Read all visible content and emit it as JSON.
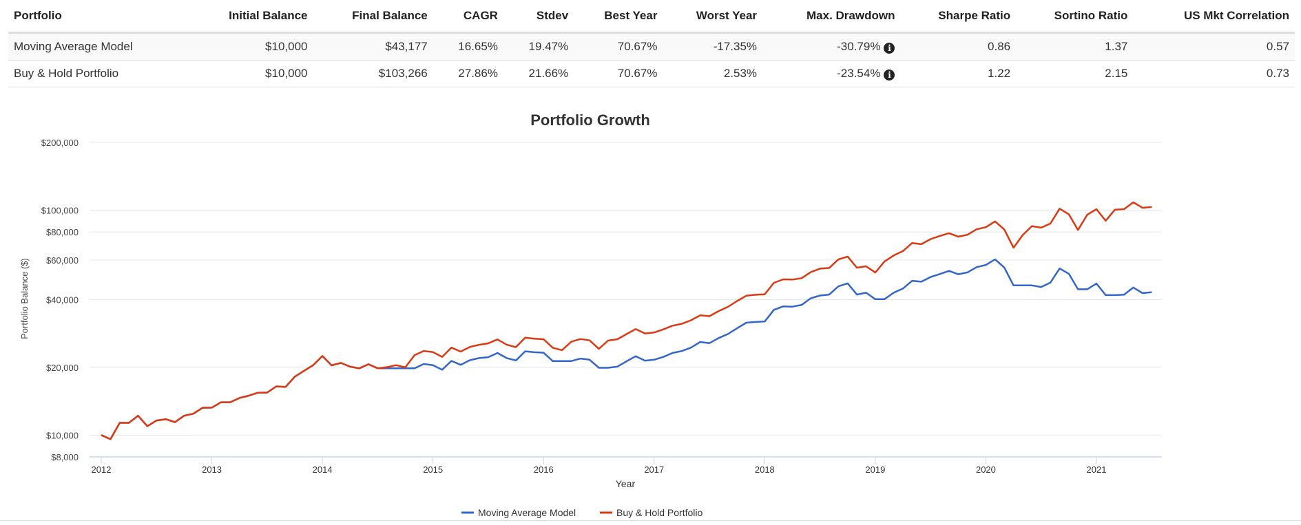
{
  "table": {
    "headers": [
      "Portfolio",
      "Initial Balance",
      "Final Balance",
      "CAGR",
      "Stdev",
      "Best Year",
      "Worst Year",
      "Max. Drawdown",
      "Sharpe Ratio",
      "Sortino Ratio",
      "US Mkt Correlation"
    ],
    "rows": [
      {
        "portfolio": "Moving Average Model",
        "initial": "$10,000",
        "final": "$43,177",
        "cagr": "16.65%",
        "stdev": "19.47%",
        "best": "70.67%",
        "worst": "-17.35%",
        "drawdown": "-30.79%",
        "sharpe": "0.86",
        "sortino": "1.37",
        "corr": "0.57"
      },
      {
        "portfolio": "Buy & Hold Portfolio",
        "initial": "$10,000",
        "final": "$103,266",
        "cagr": "27.86%",
        "stdev": "21.66%",
        "best": "70.67%",
        "worst": "2.53%",
        "drawdown": "-23.54%",
        "sharpe": "1.22",
        "sortino": "2.15",
        "corr": "0.73"
      }
    ],
    "info_icon": "info-circle-icon",
    "info_glyph": "i"
  },
  "chart_data": {
    "type": "line",
    "title": "Portfolio Growth",
    "xlabel": "Year",
    "ylabel": "Portfolio Balance ($)",
    "yscale": "log",
    "ylim": [
      8000,
      200000
    ],
    "yticks": [
      8000,
      10000,
      20000,
      40000,
      60000,
      80000,
      100000,
      200000
    ],
    "ytick_labels": [
      "$8,000",
      "$10,000",
      "$20,000",
      "$40,000",
      "$60,000",
      "$80,000",
      "$100,000",
      "$200,000"
    ],
    "xticks": [
      "2012",
      "2013",
      "2014",
      "2015",
      "2016",
      "2017",
      "2018",
      "2019",
      "2020",
      "2021"
    ],
    "grid": true,
    "legend": "bottom",
    "x": [
      "2012-01",
      "2012-02",
      "2012-03",
      "2012-04",
      "2012-05",
      "2012-06",
      "2012-07",
      "2012-08",
      "2012-09",
      "2012-10",
      "2012-11",
      "2012-12",
      "2013-01",
      "2013-02",
      "2013-03",
      "2013-04",
      "2013-05",
      "2013-06",
      "2013-07",
      "2013-08",
      "2013-09",
      "2013-10",
      "2013-11",
      "2013-12",
      "2014-01",
      "2014-02",
      "2014-03",
      "2014-04",
      "2014-05",
      "2014-06",
      "2014-07",
      "2014-08",
      "2014-09",
      "2014-10",
      "2014-11",
      "2014-12",
      "2015-01",
      "2015-02",
      "2015-03",
      "2015-04",
      "2015-05",
      "2015-06",
      "2015-07",
      "2015-08",
      "2015-09",
      "2015-10",
      "2015-11",
      "2015-12",
      "2016-01",
      "2016-02",
      "2016-03",
      "2016-04",
      "2016-05",
      "2016-06",
      "2016-07",
      "2016-08",
      "2016-09",
      "2016-10",
      "2016-11",
      "2016-12",
      "2017-01",
      "2017-02",
      "2017-03",
      "2017-04",
      "2017-05",
      "2017-06",
      "2017-07",
      "2017-08",
      "2017-09",
      "2017-10",
      "2017-11",
      "2017-12",
      "2018-01",
      "2018-02",
      "2018-03",
      "2018-04",
      "2018-05",
      "2018-06",
      "2018-07",
      "2018-08",
      "2018-09",
      "2018-10",
      "2018-11",
      "2018-12",
      "2019-01",
      "2019-02",
      "2019-03",
      "2019-04",
      "2019-05",
      "2019-06",
      "2019-07",
      "2019-08",
      "2019-09",
      "2019-10",
      "2019-11",
      "2019-12",
      "2020-01",
      "2020-02",
      "2020-03",
      "2020-04",
      "2020-05",
      "2020-06",
      "2020-07",
      "2020-08",
      "2020-09",
      "2020-10",
      "2020-11",
      "2020-12",
      "2021-01",
      "2021-02",
      "2021-03",
      "2021-04",
      "2021-05",
      "2021-06",
      "2021-07"
    ],
    "series": [
      {
        "name": "Moving Average Model",
        "color": "#3366cc",
        "values": [
          10000,
          9590,
          11340,
          11340,
          12190,
          10950,
          11610,
          11770,
          11420,
          12190,
          12450,
          13230,
          13250,
          13990,
          13990,
          14620,
          14960,
          15430,
          15450,
          16470,
          16360,
          18170,
          19310,
          20460,
          22460,
          20420,
          20940,
          20140,
          19800,
          20650,
          19800,
          19800,
          19800,
          19800,
          19800,
          20710,
          20460,
          19520,
          21370,
          20530,
          21520,
          21990,
          22200,
          23180,
          21990,
          21470,
          23570,
          23350,
          23240,
          21320,
          21320,
          21320,
          21890,
          21630,
          19910,
          19910,
          20140,
          21270,
          22420,
          21430,
          21630,
          22260,
          23180,
          23630,
          24480,
          25930,
          25630,
          27000,
          28120,
          29850,
          31600,
          31830,
          31980,
          36030,
          37330,
          37240,
          37910,
          40570,
          41740,
          42140,
          45850,
          47280,
          42140,
          42940,
          40190,
          40190,
          42940,
          44800,
          48530,
          48070,
          50420,
          52000,
          53700,
          51880,
          52870,
          55830,
          57040,
          60420,
          55570,
          46290,
          46290,
          46290,
          45520,
          47610,
          55050,
          52130,
          44480,
          44480,
          47170,
          41900,
          41900,
          42100,
          45290,
          42780,
          43177
        ]
      },
      {
        "name": "Buy & Hold Portfolio",
        "color": "#dc3912",
        "values": [
          10000,
          9590,
          11340,
          11340,
          12190,
          10950,
          11610,
          11770,
          11420,
          12190,
          12450,
          13230,
          13250,
          13990,
          13990,
          14620,
          14960,
          15430,
          15450,
          16470,
          16360,
          18170,
          19310,
          20460,
          22460,
          20420,
          20940,
          20140,
          19800,
          20650,
          19800,
          20040,
          20460,
          20000,
          22680,
          23650,
          23370,
          22260,
          24480,
          23500,
          24660,
          25200,
          25570,
          26620,
          25240,
          24610,
          27120,
          26820,
          26680,
          24440,
          23850,
          25990,
          26740,
          26370,
          24190,
          26300,
          26680,
          28110,
          29620,
          28310,
          28580,
          29500,
          30640,
          31230,
          32380,
          34100,
          33780,
          35580,
          37160,
          39440,
          41640,
          42060,
          42250,
          47530,
          49240,
          49120,
          49820,
          53060,
          54970,
          55360,
          60420,
          62150,
          55490,
          56280,
          52810,
          59160,
          62880,
          65760,
          71420,
          70590,
          74320,
          76810,
          79010,
          76280,
          77730,
          82210,
          83970,
          89070,
          82020,
          68100,
          77550,
          84960,
          83580,
          87200,
          101480,
          95880,
          81640,
          95430,
          101000,
          89750,
          100500,
          101000,
          108400,
          102400,
          103266
        ]
      }
    ]
  }
}
